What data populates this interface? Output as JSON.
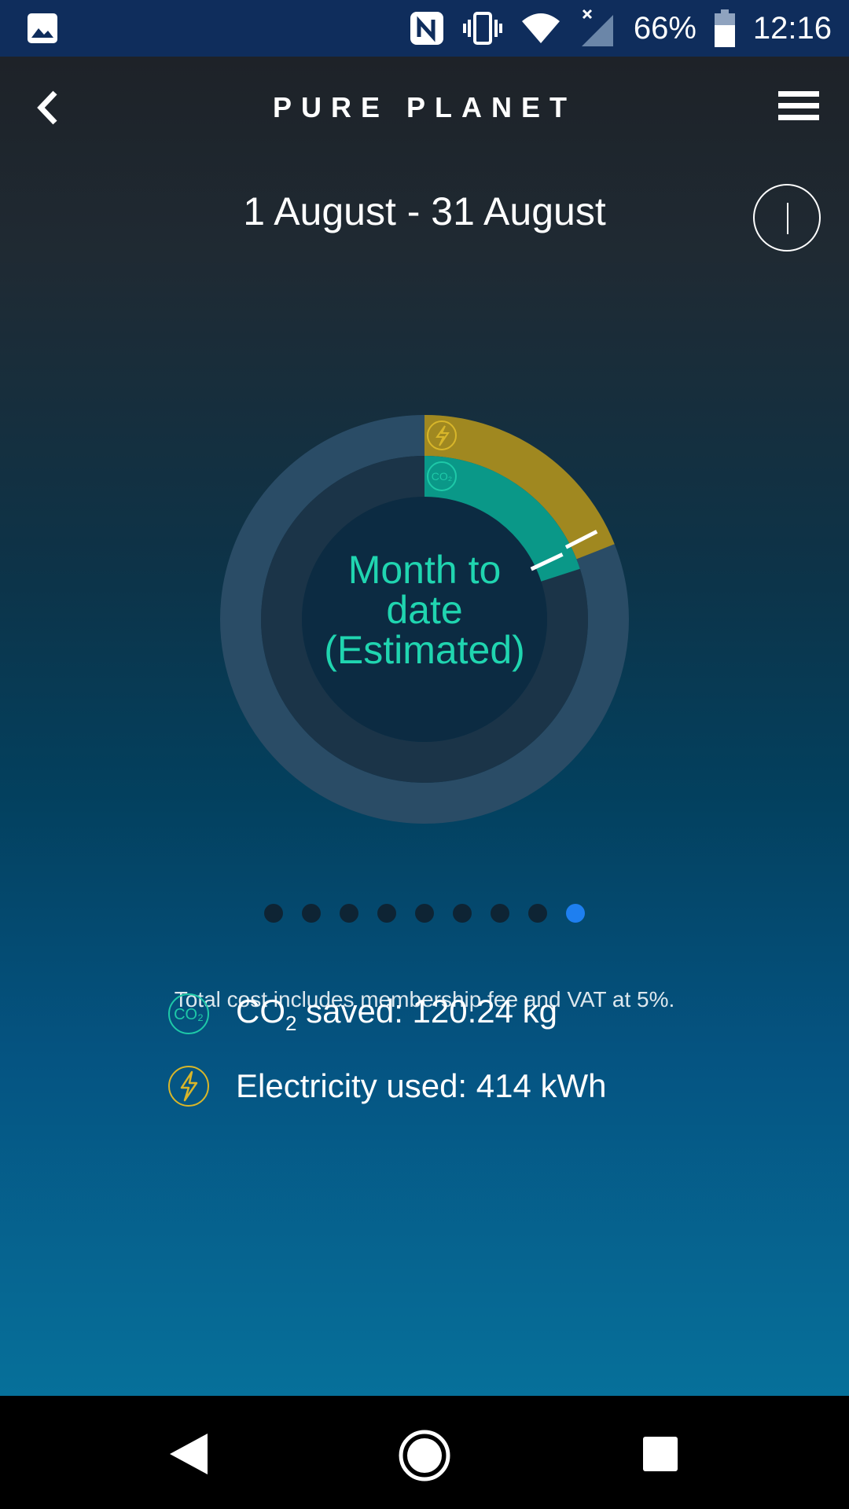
{
  "status_bar": {
    "battery_percent": "66%",
    "time": "12:16",
    "icons": [
      "gallery-icon",
      "nfc-icon",
      "vibrate-icon",
      "wifi-icon",
      "signal-icon",
      "battery-icon"
    ]
  },
  "header": {
    "title": "PURE PLANET",
    "back_icon": "chevron-left-icon",
    "menu_icon": "hamburger-menu-icon"
  },
  "period": {
    "date_range": "1 August - 31 August",
    "info_icon": "info-icon"
  },
  "chart": {
    "center_label_line1": "Month to",
    "center_label_line2": "date",
    "center_label_line3": "(Estimated)",
    "electricity_fraction": 0.19,
    "co2_fraction": 0.2,
    "electricity_color": "#a08820",
    "co2_color": "#0a9888",
    "track_color": "#2a4c66"
  },
  "pager": {
    "total": 9,
    "active_index": 8
  },
  "summary": {
    "note": "Total cost includes membership fee and VAT at 5%.",
    "co2_prefix": "CO",
    "co2_subscript": "2",
    "co2_text": " saved: 120.24 kg",
    "electricity_text": "Electricity used: 414 kWh",
    "co2_icon_label": "CO₂"
  },
  "nav_bar": {
    "icons": [
      "back-triangle-icon",
      "home-circle-icon",
      "recents-square-icon"
    ]
  }
}
